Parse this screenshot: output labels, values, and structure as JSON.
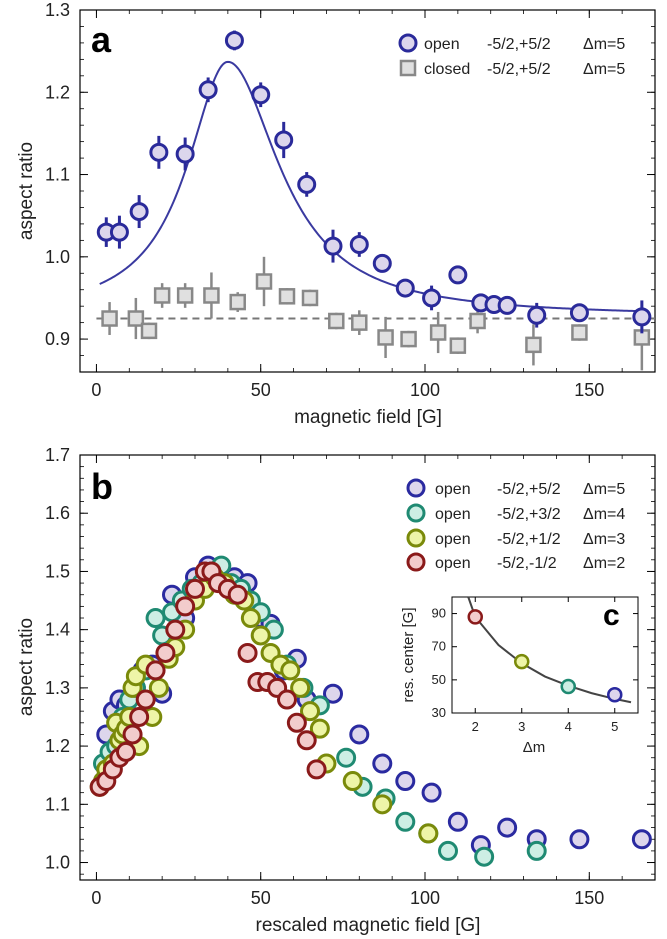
{
  "chart_data": [
    {
      "panel": "a",
      "type": "scatter",
      "xlabel": "magnetic field  [G]",
      "ylabel": "aspect ratio",
      "xlim": [
        -5,
        170
      ],
      "ylim": [
        0.86,
        1.3
      ],
      "xticks": [
        0,
        50,
        100,
        150
      ],
      "yticks": [
        0.9,
        1.0,
        1.1,
        1.2,
        1.3
      ],
      "xtick_labels": [
        "0",
        "50",
        "100",
        "150"
      ],
      "ytick_labels": [
        "0.9",
        "1.0",
        "1.1",
        "1.2",
        "1.3"
      ],
      "legend_position": "top-right",
      "series": [
        {
          "name": "open",
          "transition": "-5/2,+5/2",
          "dm": "Δm=5",
          "marker": "circle",
          "color": "#2a2a9a",
          "fill": "#dcd6ec",
          "x": [
            3,
            7,
            13,
            19,
            27,
            34,
            42,
            50,
            57,
            64,
            72,
            80,
            87,
            94,
            102,
            110,
            117,
            121,
            125,
            134,
            147,
            166
          ],
          "y": [
            1.03,
            1.03,
            1.055,
            1.127,
            1.125,
            1.203,
            1.263,
            1.197,
            1.142,
            1.088,
            1.013,
            1.015,
            0.992,
            0.962,
            0.95,
            0.978,
            0.944,
            0.942,
            0.941,
            0.929,
            0.932,
            0.927
          ],
          "err": [
            0.018,
            0.02,
            0.02,
            0.02,
            0.02,
            0.015,
            0.012,
            0.015,
            0.022,
            0.015,
            0.02,
            0.015,
            0.01,
            0.01,
            0.015,
            0.01,
            0.01,
            0.01,
            0.01,
            0.015,
            0.01,
            0.02
          ]
        },
        {
          "name": "closed",
          "transition": "-5/2,+5/2",
          "dm": "Δm=5",
          "marker": "square",
          "color": "#888888",
          "fill": "#e0e0e0",
          "x": [
            4,
            12,
            16,
            20,
            27,
            35,
            43,
            51,
            58,
            65,
            73,
            80,
            88,
            95,
            104,
            110,
            116,
            133,
            147,
            166
          ],
          "y": [
            0.925,
            0.925,
            0.91,
            0.953,
            0.953,
            0.953,
            0.945,
            0.97,
            0.952,
            0.95,
            0.922,
            0.92,
            0.902,
            0.9,
            0.908,
            0.892,
            0.922,
            0.893,
            0.908,
            0.902
          ],
          "err": [
            0.02,
            0.025,
            0.01,
            0.015,
            0.015,
            0.028,
            0.012,
            0.03,
            0.01,
            0.01,
            0.01,
            0.015,
            0.025,
            0.01,
            0.025,
            0.01,
            0.015,
            0.025,
            0.01,
            0.04
          ]
        }
      ],
      "fit_line": {
        "color": "#3a3aa0",
        "baseline": 0.927,
        "amplitude": 0.31,
        "center": 40,
        "width_left": 15,
        "width_right": 19,
        "x_start": 1,
        "x_end": 167
      },
      "reference_line": {
        "y": 0.925,
        "style": "dashed",
        "color": "#777777"
      }
    },
    {
      "panel": "b",
      "type": "scatter",
      "xlabel": "rescaled magnetic field  [G]",
      "ylabel": "aspect ratio",
      "xlim": [
        -5,
        170
      ],
      "ylim": [
        0.97,
        1.7
      ],
      "xticks": [
        0,
        50,
        100,
        150
      ],
      "yticks": [
        1.0,
        1.1,
        1.2,
        1.3,
        1.4,
        1.5,
        1.6,
        1.7
      ],
      "xtick_labels": [
        "0",
        "50",
        "100",
        "150"
      ],
      "ytick_labels": [
        "1.0",
        "1.1",
        "1.2",
        "1.3",
        "1.4",
        "1.5",
        "1.6",
        "1.7"
      ],
      "legend_position": "top-right",
      "series": [
        {
          "name": "open",
          "transition": "-5/2,+5/2",
          "dm": "Δm=5",
          "color": "#2a2aa0",
          "fill": "#ddd6ec",
          "x": [
            3,
            5,
            7,
            9,
            12,
            14,
            17,
            20,
            23,
            27,
            30,
            34,
            38,
            42,
            46,
            50,
            53,
            57,
            61,
            64,
            72,
            80,
            87,
            94,
            102,
            110,
            117,
            125,
            134,
            147,
            166
          ],
          "y": [
            1.22,
            1.26,
            1.28,
            1.27,
            1.3,
            1.33,
            1.34,
            1.29,
            1.46,
            1.42,
            1.49,
            1.51,
            1.5,
            1.49,
            1.48,
            1.42,
            1.41,
            1.33,
            1.35,
            1.28,
            1.29,
            1.22,
            1.17,
            1.14,
            1.12,
            1.07,
            1.03,
            1.06,
            1.04,
            1.04,
            1.04
          ]
        },
        {
          "name": "open",
          "transition": "-5/2,+3/2",
          "dm": "Δm=4",
          "color": "#1f8a72",
          "fill": "#cdeee4",
          "x": [
            2,
            4,
            6,
            8,
            10,
            12,
            15,
            18,
            20,
            23,
            26,
            29,
            32,
            35,
            38,
            41,
            44,
            47,
            50,
            54,
            58,
            63,
            68,
            76,
            81,
            88,
            94,
            101,
            107,
            118,
            134
          ],
          "y": [
            1.17,
            1.19,
            1.2,
            1.25,
            1.28,
            1.3,
            1.33,
            1.42,
            1.39,
            1.43,
            1.45,
            1.47,
            1.48,
            1.5,
            1.51,
            1.48,
            1.47,
            1.45,
            1.43,
            1.4,
            1.34,
            1.3,
            1.27,
            1.18,
            1.13,
            1.11,
            1.07,
            1.05,
            1.02,
            1.01,
            1.02
          ]
        },
        {
          "name": "open",
          "transition": "-5/2,+1/2",
          "dm": "Δm=3",
          "color": "#7a8a0a",
          "fill": "#eef5a8",
          "x": [
            1,
            2,
            3,
            5,
            6,
            7,
            8,
            9,
            10,
            11,
            12,
            13,
            15,
            17,
            19,
            22,
            24,
            27,
            30,
            33,
            36,
            39,
            42,
            45,
            47,
            50,
            53,
            56,
            59,
            62,
            65,
            68,
            70,
            78,
            87,
            101
          ],
          "y": [
            1.13,
            1.14,
            1.16,
            1.17,
            1.24,
            1.21,
            1.22,
            1.23,
            1.25,
            1.3,
            1.32,
            1.2,
            1.34,
            1.25,
            1.3,
            1.35,
            1.37,
            1.4,
            1.45,
            1.47,
            1.49,
            1.48,
            1.46,
            1.45,
            1.42,
            1.39,
            1.36,
            1.34,
            1.33,
            1.3,
            1.26,
            1.23,
            1.17,
            1.14,
            1.1,
            1.05
          ]
        },
        {
          "name": "open",
          "transition": "-5/2,-1/2",
          "dm": "Δm=2",
          "color": "#8a1a1a",
          "fill": "#f2cccc",
          "x": [
            1,
            3,
            5,
            7,
            9,
            11,
            13,
            15,
            18,
            21,
            24,
            27,
            30,
            33,
            35,
            37,
            40,
            43,
            46,
            49,
            52,
            55,
            58,
            61,
            64,
            67
          ],
          "y": [
            1.13,
            1.14,
            1.16,
            1.18,
            1.19,
            1.22,
            1.25,
            1.28,
            1.33,
            1.36,
            1.4,
            1.44,
            1.47,
            1.5,
            1.5,
            1.48,
            1.47,
            1.46,
            1.36,
            1.31,
            1.31,
            1.3,
            1.28,
            1.24,
            1.21,
            1.16
          ]
        }
      ]
    },
    {
      "panel": "c",
      "type": "scatter",
      "xlabel": "Δm",
      "ylabel": "res. center [G]",
      "xlim": [
        1.5,
        5.5
      ],
      "ylim": [
        30,
        100
      ],
      "xticks": [
        2,
        3,
        4,
        5
      ],
      "yticks": [
        30,
        50,
        70,
        90
      ],
      "xtick_labels": [
        "2",
        "3",
        "4",
        "5"
      ],
      "ytick_labels": [
        "30",
        "50",
        "70",
        "90"
      ],
      "points": [
        {
          "x": 2,
          "y": 88,
          "color": "#8a1a1a",
          "fill": "#f2cccc"
        },
        {
          "x": 3,
          "y": 61,
          "color": "#7a8a0a",
          "fill": "#eef5a8"
        },
        {
          "x": 4,
          "y": 46,
          "color": "#1f8a72",
          "fill": "#cdeee4"
        },
        {
          "x": 5,
          "y": 41,
          "color": "#2a2aa0",
          "fill": "#ddd6ec"
        }
      ],
      "fit_line": {
        "x": [
          1.85,
          2,
          2.5,
          3,
          3.5,
          4,
          4.5,
          5,
          5.35
        ],
        "y": [
          100,
          88,
          71,
          60,
          52,
          46.5,
          42,
          38.5,
          36.5
        ],
        "color": "#444444"
      }
    }
  ],
  "labels": {
    "panel_a": "a",
    "panel_b": "b",
    "panel_c": "c"
  }
}
